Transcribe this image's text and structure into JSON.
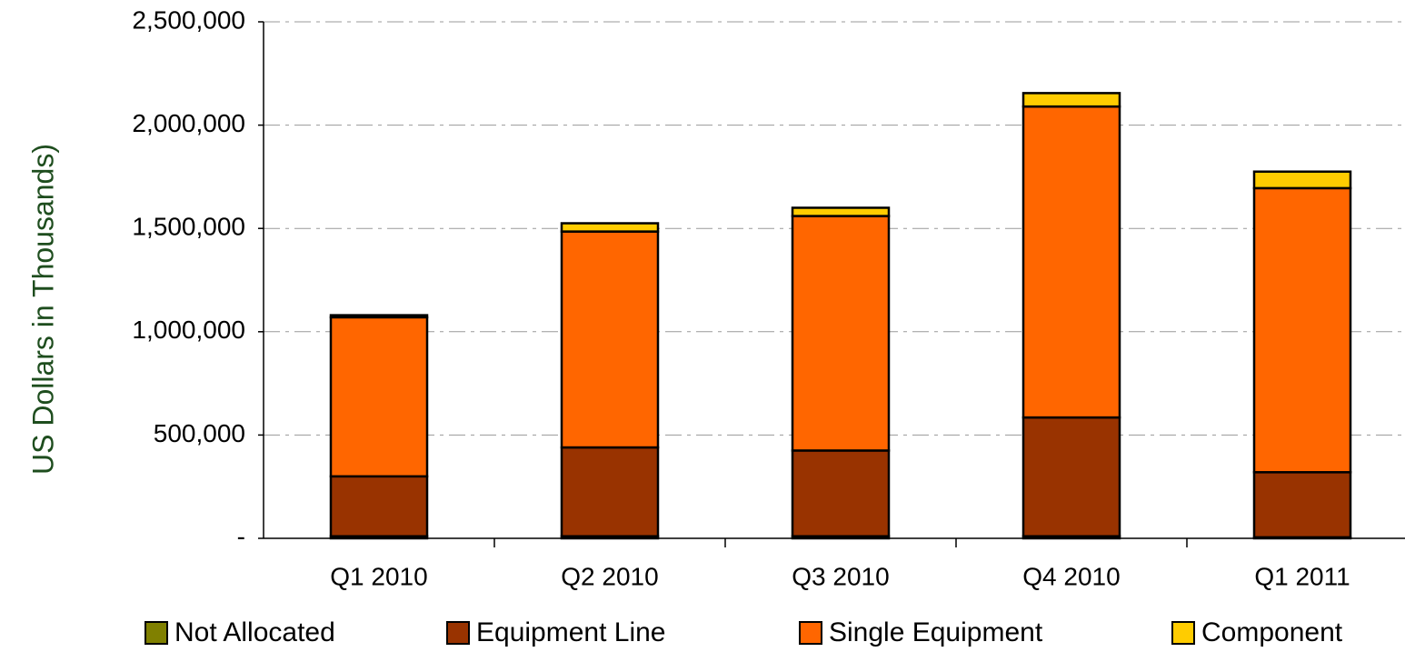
{
  "chart_data": {
    "type": "stacked_bar",
    "y_axis_label": "US Dollars in Thousands)",
    "categories": [
      "Q1 2010",
      "Q2 2010",
      "Q3 2010",
      "Q4 2010",
      "Q1 2011"
    ],
    "series": [
      {
        "name": "Not Allocated",
        "color": "#808000",
        "values": [
          10000,
          10000,
          10000,
          10000,
          5000
        ]
      },
      {
        "name": "Equipment Line",
        "color": "#993300",
        "values": [
          290000,
          430000,
          415000,
          575000,
          315000
        ]
      },
      {
        "name": "Single Equipment",
        "color": "#ff6600",
        "values": [
          770000,
          1045000,
          1135000,
          1505000,
          1375000
        ]
      },
      {
        "name": "Component",
        "color": "#ffcc00",
        "values": [
          10000,
          40000,
          40000,
          65000,
          80000
        ]
      }
    ],
    "ylim": [
      0,
      2500000
    ],
    "yticks": [
      {
        "value": 0,
        "label": "-"
      },
      {
        "value": 500000,
        "label": "500,000"
      },
      {
        "value": 1000000,
        "label": "1,000,000"
      },
      {
        "value": 1500000,
        "label": "1,500,000"
      },
      {
        "value": 2000000,
        "label": "2,000,000"
      },
      {
        "value": 2500000,
        "label": "2,500,000"
      }
    ],
    "grid": true,
    "legend": "bottom"
  }
}
